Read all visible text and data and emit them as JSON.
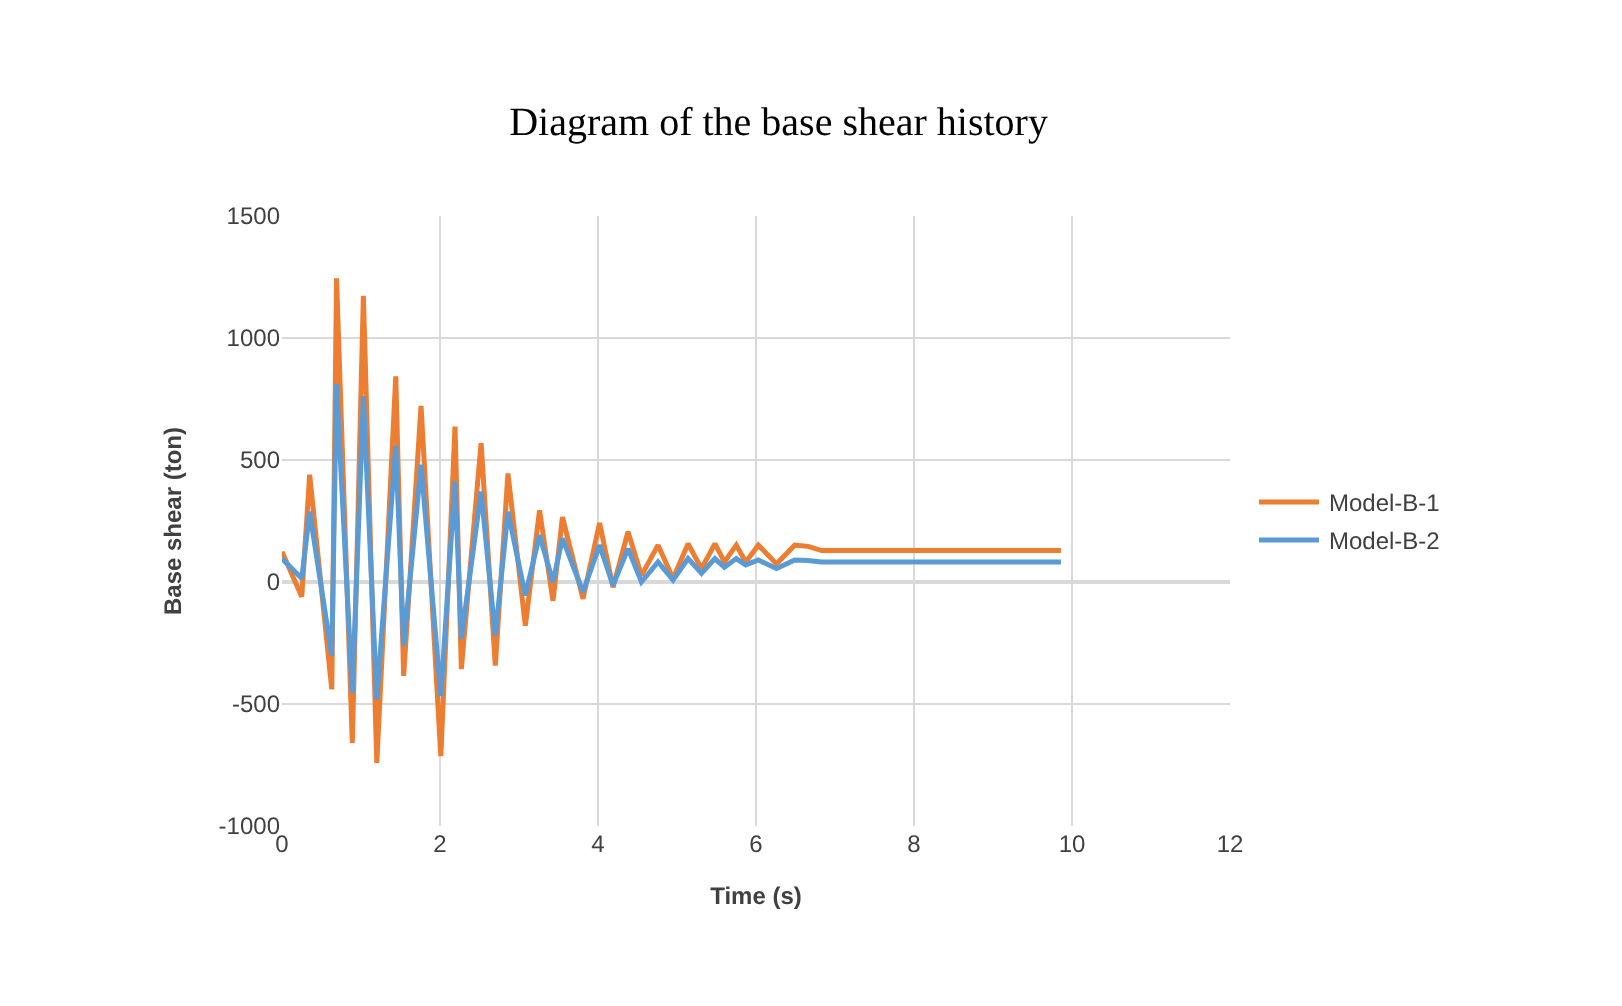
{
  "chart_data": {
    "type": "line",
    "title": "Diagram of the base shear history",
    "xlabel": "Time (s)",
    "ylabel": "Base shear (ton)",
    "xlim": [
      0,
      12
    ],
    "xticks": [
      0,
      2,
      4,
      6,
      8,
      10,
      12
    ],
    "ylim": [
      -1000,
      1500
    ],
    "yticks": [
      -1000,
      -500,
      0,
      500,
      1000,
      1500
    ],
    "grid": true,
    "legend": "right",
    "marker": "none",
    "line_style": "solid",
    "series": [
      {
        "name": "Model-B-1",
        "color": "#ed7d31",
        "x": [
          0,
          0.25,
          0.35,
          0.63,
          0.69,
          0.89,
          1.03,
          1.2,
          1.44,
          1.54,
          1.76,
          2.01,
          2.19,
          2.27,
          2.52,
          2.7,
          2.86,
          3.08,
          3.26,
          3.43,
          3.55,
          3.81,
          4.02,
          4.19,
          4.38,
          4.55,
          4.76,
          4.95,
          5.14,
          5.31,
          5.48,
          5.6,
          5.75,
          5.87,
          6.03,
          6.26,
          6.49,
          6.66,
          6.83,
          9.86
        ],
        "values": [
          124,
          -60,
          440,
          -440,
          1245,
          -660,
          1173,
          -742,
          843,
          -385,
          722,
          -714,
          637,
          -357,
          569,
          -343,
          445,
          -179,
          294,
          -77,
          266,
          -69,
          242,
          -22,
          206,
          27,
          151,
          14,
          157,
          55,
          157,
          82,
          151,
          82,
          151,
          74,
          151,
          146,
          129,
          129
        ]
      },
      {
        "name": "Model-B-2",
        "color": "#5b9bd5",
        "x": [
          0,
          0.25,
          0.35,
          0.63,
          0.69,
          0.89,
          1.03,
          1.2,
          1.44,
          1.54,
          1.76,
          2.01,
          2.19,
          2.27,
          2.52,
          2.7,
          2.86,
          3.08,
          3.26,
          3.43,
          3.55,
          3.81,
          4.02,
          4.19,
          4.38,
          4.55,
          4.76,
          4.95,
          5.14,
          5.31,
          5.48,
          5.6,
          5.75,
          5.87,
          6.03,
          6.26,
          6.49,
          6.66,
          6.83,
          9.86
        ],
        "values": [
          96,
          14,
          288,
          -302,
          810,
          -453,
          761,
          -481,
          558,
          -261,
          481,
          -467,
          412,
          -233,
          371,
          -220,
          288,
          -55,
          192,
          0,
          179,
          -41,
          151,
          -14,
          137,
          0,
          82,
          8,
          96,
          36,
          96,
          60,
          96,
          70,
          90,
          55,
          90,
          88,
          82,
          82
        ]
      }
    ]
  }
}
